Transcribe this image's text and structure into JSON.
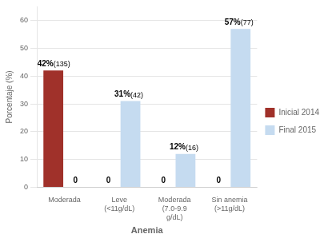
{
  "chart_data": {
    "type": "bar",
    "categories": [
      "Moderada",
      "Leve\n(<11g/dL)",
      "Moderada\n(7.0-9.9\ng/dL)",
      "Sin anemia\n(>11g/dL)"
    ],
    "series": [
      {
        "name": "Inicial 2014",
        "color": "#A0312A",
        "values": [
          42,
          0,
          0,
          0
        ],
        "value_labels": [
          "42%(135)",
          "0",
          "0",
          "0"
        ]
      },
      {
        "name": "Final 2015",
        "color": "#C5DBF0",
        "values": [
          0,
          31,
          12,
          57
        ],
        "value_labels": [
          "0",
          "31%(42)",
          "12%(16)",
          "57%(77)"
        ]
      }
    ],
    "xlabel": "Anemia",
    "ylabel": "Porcentaje (%)",
    "ylim": [
      0,
      65
    ],
    "yticks": [
      0,
      10,
      20,
      30,
      40,
      50,
      60
    ],
    "grid": true,
    "legend": "right",
    "data_labels": true
  }
}
